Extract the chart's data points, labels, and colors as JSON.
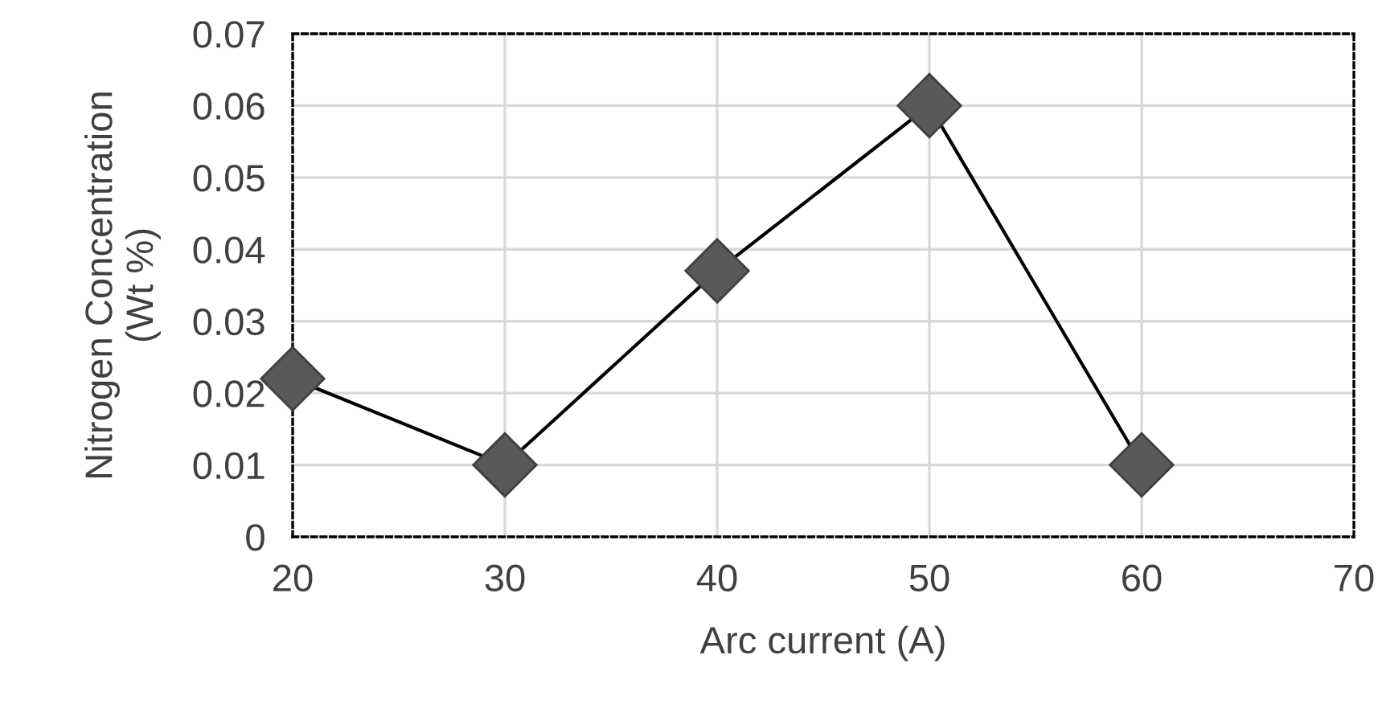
{
  "chart_data": {
    "type": "line",
    "xlabel": "Arc current (A)",
    "ylabel": "Nitrogen Concentration\n(Wt %)",
    "x": [
      20,
      30,
      40,
      50,
      60
    ],
    "series": [
      {
        "color": "#595959",
        "values": [
          0.022,
          0.01,
          0.037,
          0.06,
          0.01
        ]
      }
    ],
    "xlim": [
      20,
      70
    ],
    "xticks": [
      20,
      30,
      40,
      50,
      60,
      70
    ],
    "ylim": [
      0,
      0.07
    ],
    "yticks": [
      0,
      0.01,
      0.02,
      0.03,
      0.04,
      0.05,
      0.06,
      0.07
    ],
    "grid": true,
    "marker": "diamond",
    "line_style": "solid",
    "legend": false
  }
}
